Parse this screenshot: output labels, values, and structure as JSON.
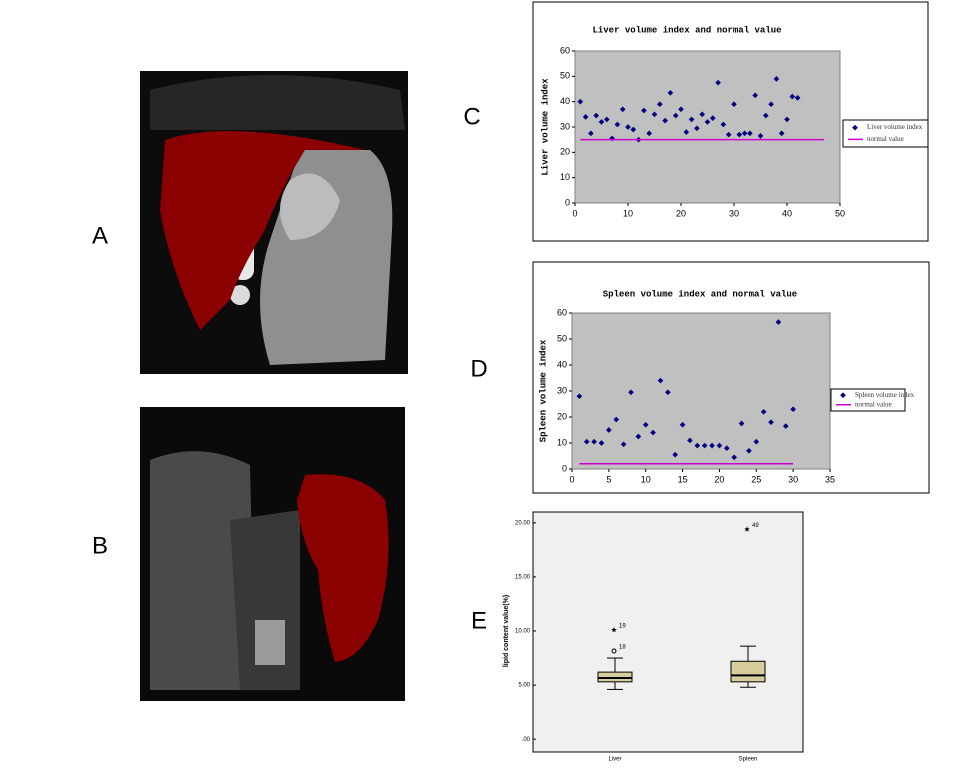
{
  "panel_labels": [
    "A",
    "B",
    "C",
    "D",
    "E"
  ],
  "chart_data": [
    {
      "type": "scatter",
      "title": "Liver volume index and normal value",
      "y_label": "Liver volume index",
      "xlim": [
        0,
        50
      ],
      "ylim": [
        0,
        60
      ],
      "xticks": [
        0,
        10,
        20,
        30,
        40,
        50
      ],
      "yticks": [
        0,
        10,
        20,
        30,
        40,
        50,
        60
      ],
      "grid": false,
      "background": "#c0c0c0",
      "legend": "right",
      "series": [
        {
          "name": "Liver volume index",
          "color": "#000080",
          "kind": "markers",
          "x": [
            1,
            2,
            3,
            4,
            5,
            6,
            7,
            8,
            9,
            10,
            11,
            12,
            13,
            14,
            15,
            16,
            17,
            18,
            19,
            20,
            21,
            22,
            23,
            24,
            25,
            26,
            27,
            28,
            29,
            30,
            31,
            32,
            33,
            34,
            35,
            36,
            37,
            38,
            39,
            40,
            41,
            42
          ],
          "values": [
            40,
            34,
            27.5,
            34.5,
            32,
            33,
            25.5,
            31,
            37,
            30,
            29,
            25,
            36.5,
            27.5,
            35,
            39,
            32.5,
            43.5,
            34.5,
            37,
            28,
            33,
            29.5,
            35,
            32,
            33.5,
            47.5,
            31,
            27,
            39,
            27,
            27.5,
            27.5,
            42.5,
            26.5,
            34.5,
            39,
            49,
            27.5,
            33,
            42,
            41.5
          ]
        },
        {
          "name": "normal value",
          "color": "#cc00cc",
          "kind": "line",
          "x": [
            1,
            47
          ],
          "values": [
            25,
            25
          ]
        }
      ]
    },
    {
      "type": "scatter",
      "title": "Spleen volume index and normal value",
      "y_label": "Spleen volume index",
      "xlim": [
        0,
        35
      ],
      "ylim": [
        0,
        60
      ],
      "xticks": [
        0,
        5,
        10,
        15,
        20,
        25,
        30,
        35
      ],
      "yticks": [
        0,
        10,
        20,
        30,
        40,
        50,
        60
      ],
      "grid": false,
      "background": "#c0c0c0",
      "legend": "right",
      "series": [
        {
          "name": "Spleen volume index",
          "color": "#000080",
          "kind": "markers",
          "x": [
            1,
            2,
            3,
            4,
            5,
            6,
            7,
            8,
            9,
            10,
            11,
            12,
            13,
            14,
            15,
            16,
            17,
            18,
            19,
            20,
            21,
            22,
            23,
            24,
            25,
            26,
            27,
            28,
            29,
            30
          ],
          "values": [
            28,
            10.5,
            10.5,
            10,
            15,
            19,
            9.5,
            29.5,
            12.5,
            17,
            14,
            34,
            29.5,
            5.5,
            17,
            11,
            9,
            9,
            9,
            9,
            8,
            4.5,
            17.5,
            7,
            10.5,
            22,
            18,
            56.5,
            16.5,
            23
          ]
        },
        {
          "name": "normal value",
          "color": "#cc00cc",
          "kind": "line",
          "x": [
            1,
            30
          ],
          "values": [
            2,
            2
          ]
        }
      ]
    },
    {
      "type": "box",
      "y_label": "lipid content value(%)",
      "categories": [
        "Liver",
        "Spleen"
      ],
      "ylim": [
        -1,
        21
      ],
      "yticks": [
        {
          "value": 0,
          "label": ".00"
        },
        {
          "value": 5,
          "label": "5.00"
        },
        {
          "value": 10,
          "label": "10.00"
        },
        {
          "value": 15,
          "label": "15.00"
        },
        {
          "value": 20,
          "label": "20.00"
        }
      ],
      "grid": false,
      "background": "#f0f0f0",
      "color": "#d6cc9c",
      "boxes": [
        {
          "whislo": 4.6,
          "q1": 5.3,
          "med": 5.65,
          "q3": 6.2,
          "whishi": 7.5,
          "fliers": [
            {
              "value": 8.15,
              "label": "18",
              "marker": "circle"
            },
            {
              "value": 10.1,
              "label": "19",
              "marker": "star"
            }
          ]
        },
        {
          "whislo": 4.8,
          "q1": 5.3,
          "med": 5.9,
          "q3": 7.2,
          "whishi": 8.6,
          "fliers": [
            {
              "value": 19.4,
              "label": "49",
              "marker": "star"
            }
          ]
        }
      ]
    }
  ]
}
